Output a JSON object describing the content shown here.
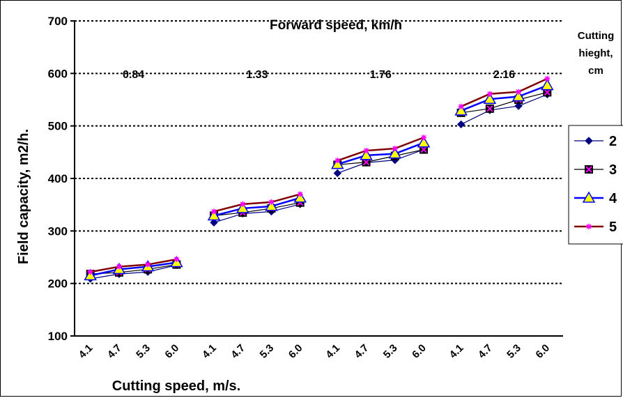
{
  "chart_data": {
    "type": "line",
    "title": "Forward speed, km/h",
    "xlabel": "Cutting speed, m/s.",
    "ylabel": "Field capacity, m2/h.",
    "ylim": [
      100,
      700
    ],
    "yticks": [
      100,
      200,
      300,
      400,
      500,
      600,
      700
    ],
    "grid": true,
    "legend_title": "Cutting hieght, cm",
    "legend_position": "right",
    "groups": [
      {
        "label": "0.84",
        "x": [
          "4.1",
          "4.7",
          "5.3",
          "6.0"
        ]
      },
      {
        "label": "1.33",
        "x": [
          "4.1",
          "4.7",
          "5.3",
          "6.0"
        ]
      },
      {
        "label": "1.76",
        "x": [
          "4.1",
          "4.7",
          "5.3",
          "6.0"
        ]
      },
      {
        "label": "2.16",
        "x": [
          "4.1",
          "4.7",
          "5.3",
          "6.0"
        ]
      }
    ],
    "series": [
      {
        "name": "2",
        "color": "#000080",
        "marker": "diamond",
        "values": [
          [
            209,
            218,
            222,
            235
          ],
          [
            316,
            333,
            337,
            351
          ],
          [
            410,
            430,
            435,
            455
          ],
          [
            503,
            530,
            538,
            560
          ]
        ]
      },
      {
        "name": "3",
        "color": "#000000",
        "marker": "square",
        "values": [
          [
            218,
            221,
            227,
            236
          ],
          [
            329,
            335,
            343,
            354
          ],
          [
            426,
            431,
            443,
            455
          ],
          [
            525,
            533,
            550,
            564
          ]
        ]
      },
      {
        "name": "4",
        "color": "#0000ff",
        "marker": "triangle",
        "values": [
          [
            215,
            227,
            232,
            240
          ],
          [
            329,
            343,
            347,
            363
          ],
          [
            427,
            444,
            447,
            468
          ],
          [
            529,
            551,
            556,
            577
          ]
        ]
      },
      {
        "name": "5",
        "color": "#800000",
        "marker": "star",
        "values": [
          [
            222,
            232,
            236,
            246
          ],
          [
            337,
            351,
            355,
            370
          ],
          [
            434,
            453,
            457,
            478
          ],
          [
            537,
            561,
            565,
            590
          ]
        ]
      }
    ]
  }
}
